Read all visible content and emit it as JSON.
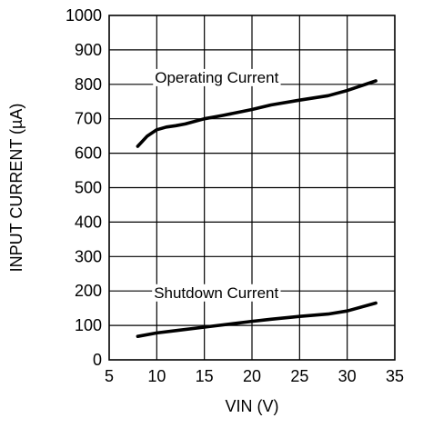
{
  "chart_data": {
    "type": "line",
    "title": "",
    "xlabel": "VIN (V)",
    "ylabel": "INPUT CURRENT (µA)",
    "xlim": [
      5,
      35
    ],
    "ylim": [
      0,
      1000
    ],
    "x_ticks": [
      5,
      10,
      15,
      20,
      25,
      30,
      35
    ],
    "y_ticks": [
      0,
      100,
      200,
      300,
      400,
      500,
      600,
      700,
      800,
      900,
      1000
    ],
    "grid": true,
    "legend": "none",
    "series": [
      {
        "label": "Operating Current",
        "x": [
          8,
          9,
          10,
          11,
          12,
          13,
          15,
          17,
          20,
          22,
          25,
          28,
          30,
          33
        ],
        "y": [
          620,
          650,
          668,
          676,
          680,
          685,
          700,
          710,
          727,
          740,
          754,
          767,
          782,
          810
        ]
      },
      {
        "label": "Shutdown Current",
        "x": [
          8,
          10,
          12,
          15,
          18,
          20,
          22,
          25,
          28,
          30,
          33
        ],
        "y": [
          68,
          78,
          85,
          95,
          105,
          112,
          118,
          126,
          133,
          142,
          165
        ]
      }
    ],
    "annotations": [
      {
        "text": "Operating Current",
        "x": 9.8,
        "y": 805
      },
      {
        "text": "Shutdown Current",
        "x": 9.7,
        "y": 180
      }
    ]
  }
}
